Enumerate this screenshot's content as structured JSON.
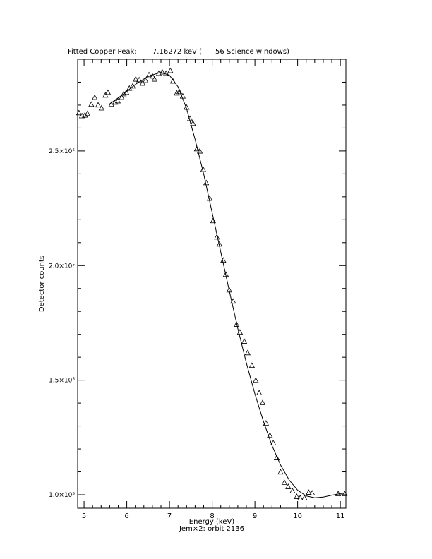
{
  "chart_data": {
    "type": "scatter",
    "title": "Fitted Copper Peak:       7.16272 keV (      56 Science windows)",
    "xlabel": "Energy (keV)",
    "subtitle": "Jem×2: orbit 2136",
    "ylabel": "Detector counts",
    "xlim": [
      4.85,
      11.13
    ],
    "ylim": [
      94150,
      290000
    ],
    "xticks": [
      5,
      6,
      7,
      8,
      9,
      10,
      11
    ],
    "x_minor_ticks": [
      5.2,
      5.4,
      5.6,
      5.8,
      6.2,
      6.4,
      6.6,
      6.8,
      7.2,
      7.4,
      7.6,
      7.8,
      8.2,
      8.4,
      8.6,
      8.8,
      9.2,
      9.4,
      9.6,
      9.8,
      10.2,
      10.4,
      10.6,
      10.8
    ],
    "yticks": [
      {
        "value": 100000,
        "label": "1.0×10⁵"
      },
      {
        "value": 150000,
        "label": "1.5×10⁵"
      },
      {
        "value": 200000,
        "label": "2.0×10⁵"
      },
      {
        "value": 250000,
        "label": "2.5×10⁵"
      }
    ],
    "y_minor_ticks": [
      110000,
      120000,
      130000,
      140000,
      160000,
      170000,
      180000,
      190000,
      210000,
      220000,
      230000,
      240000,
      260000,
      270000,
      280000
    ],
    "color": "#000000",
    "points": {
      "x": [
        4.88,
        4.95,
        5.02,
        5.08,
        5.17,
        5.25,
        5.33,
        5.41,
        5.5,
        5.56,
        5.64,
        5.73,
        5.79,
        5.88,
        5.93,
        5.99,
        6.06,
        6.14,
        6.21,
        6.29,
        6.37,
        6.44,
        6.52,
        6.6,
        6.65,
        6.75,
        6.83,
        6.92,
        7.02,
        7.08,
        7.17,
        7.23,
        7.31,
        7.4,
        7.48,
        7.55,
        7.64,
        7.71,
        7.79,
        7.86,
        7.94,
        8.02,
        8.11,
        8.17,
        8.26,
        8.32,
        8.4,
        8.49,
        8.57,
        8.65,
        8.75,
        8.83,
        8.93,
        9.02,
        9.1,
        9.18,
        9.26,
        9.35,
        9.43,
        9.51,
        9.6,
        9.69,
        9.78,
        9.88,
        9.98,
        10.06,
        10.16,
        10.26,
        10.34,
        10.95,
        11.1
      ],
      "y": [
        266500,
        265200,
        265500,
        266200,
        270200,
        273200,
        269900,
        268600,
        274200,
        275400,
        270200,
        271100,
        271700,
        273200,
        274800,
        275400,
        277200,
        278200,
        281200,
        280900,
        279400,
        280600,
        283100,
        282500,
        281200,
        283700,
        284300,
        283700,
        284900,
        280300,
        275100,
        275700,
        273800,
        268900,
        264000,
        261900,
        250800,
        249800,
        241800,
        236000,
        229200,
        219400,
        212300,
        209200,
        202200,
        196000,
        189200,
        184300,
        174200,
        170800,
        166800,
        161800,
        156300,
        149800,
        144300,
        140000,
        131100,
        125800,
        122500,
        116000,
        109800,
        105200,
        103400,
        101500,
        99100,
        98500,
        98500,
        100900,
        100600,
        100300,
        100300
      ]
    },
    "fit": {
      "x": [
        5.6,
        5.9,
        6.2,
        6.5,
        6.8,
        7.0,
        7.2,
        7.4,
        7.6,
        7.8,
        8.0,
        8.2,
        8.4,
        8.6,
        8.8,
        9.0,
        9.2,
        9.4,
        9.6,
        9.8,
        10.0,
        10.2,
        10.4,
        10.6,
        10.8,
        11.0,
        11.13
      ],
      "y": [
        270500,
        274500,
        279000,
        282600,
        284300,
        283000,
        278000,
        268500,
        255000,
        240000,
        223000,
        206000,
        189000,
        172500,
        157500,
        144000,
        132000,
        121500,
        113000,
        106500,
        102000,
        99500,
        98700,
        99000,
        99800,
        100500,
        100800
      ]
    }
  }
}
